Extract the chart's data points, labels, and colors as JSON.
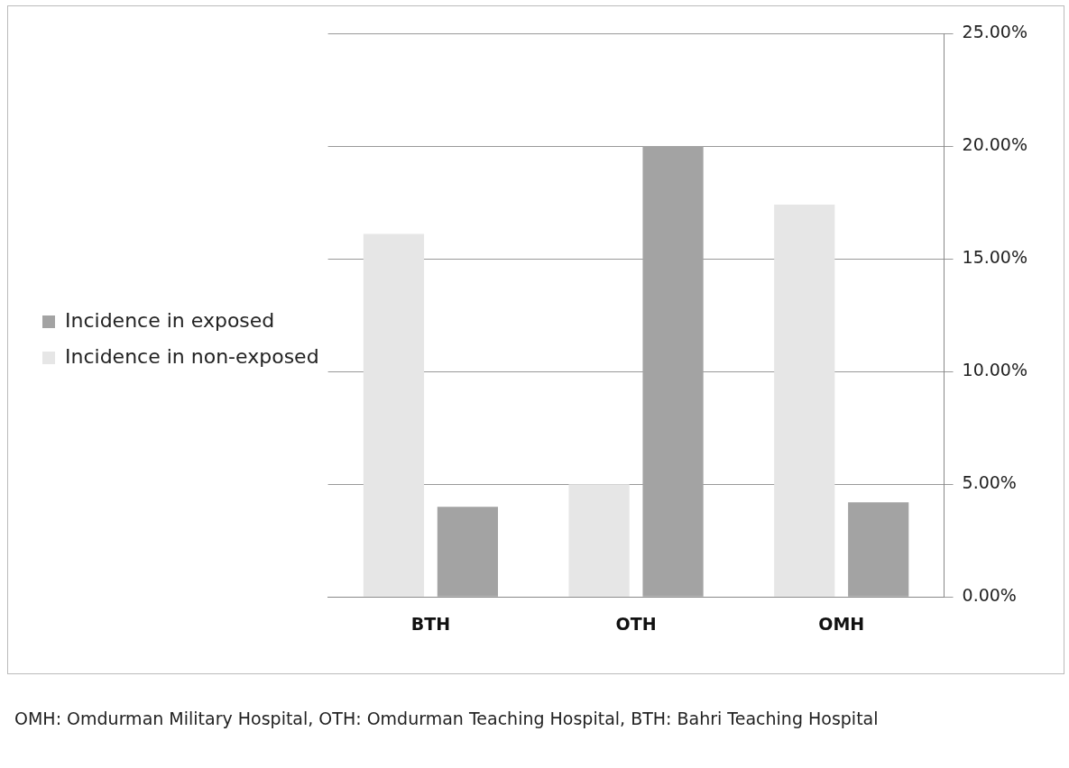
{
  "chart_data": {
    "type": "bar",
    "categories": [
      "BTH",
      "OTH",
      "OMH"
    ],
    "series": [
      {
        "name": "Incidence in non-exposed",
        "color": "#e6e6e6",
        "values": [
          16.1,
          5.0,
          17.4
        ]
      },
      {
        "name": "Incidence in exposed",
        "color": "#a3a3a3",
        "values": [
          4.0,
          20.0,
          4.2
        ]
      }
    ],
    "ylim": [
      0,
      25
    ],
    "yticks": [
      {
        "value": 0,
        "label": "0.00%"
      },
      {
        "value": 5,
        "label": "5.00%"
      },
      {
        "value": 10,
        "label": "10.00%"
      },
      {
        "value": 15,
        "label": "15.00%"
      },
      {
        "value": 20,
        "label": "20.00%"
      },
      {
        "value": 25,
        "label": "25.00%"
      }
    ],
    "grid": "y",
    "legend": "left",
    "annotations": [
      "OMH: Omdurman Military Hospital, OTH: Omdurman Teaching Hospital, BTH: Bahri Teaching Hospital"
    ]
  }
}
